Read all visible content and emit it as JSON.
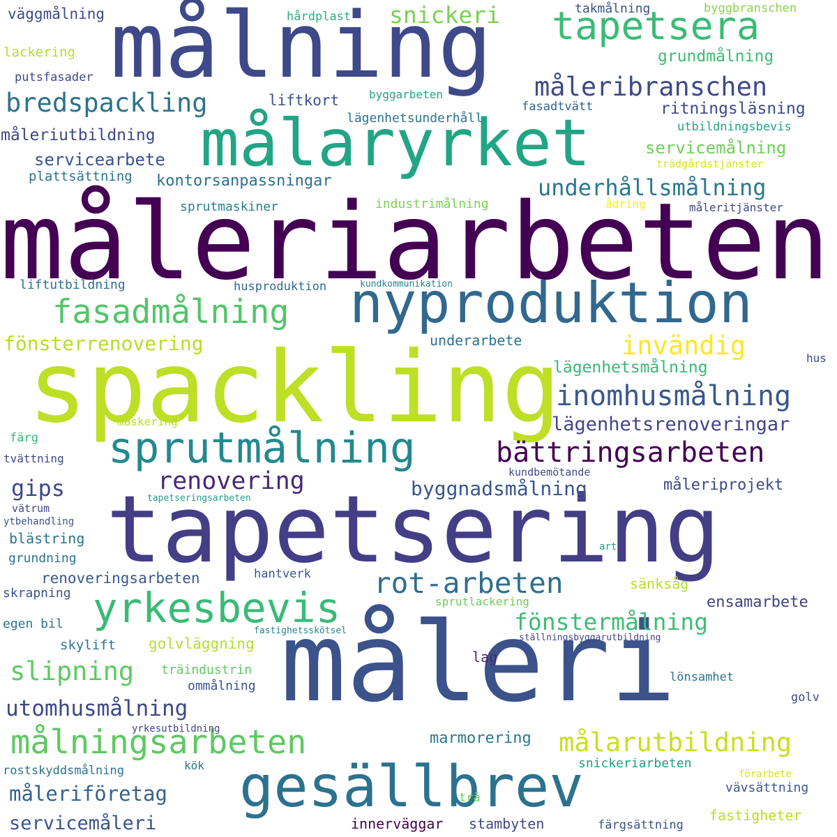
{
  "words": [
    {
      "text": "måleriarbeten",
      "color": "#440154"
    },
    {
      "text": "målning",
      "color": "#3e4989"
    },
    {
      "text": "spackling",
      "color": "#bddf26"
    },
    {
      "text": "tapetsering",
      "color": "#433e85"
    },
    {
      "text": "måleri",
      "color": "#3b528b"
    },
    {
      "text": "målaryrket",
      "color": "#21a585"
    },
    {
      "text": "nyproduktion",
      "color": "#31688e"
    },
    {
      "text": "gesällbrev",
      "color": "#2c728e"
    },
    {
      "text": "tapetsera",
      "color": "#3bbb75"
    },
    {
      "text": "sprutmålning",
      "color": "#23898e"
    },
    {
      "text": "yrkesbevis",
      "color": "#3aba76"
    },
    {
      "text": "fasadmålning",
      "color": "#52c569"
    },
    {
      "text": "målningsarbeten",
      "color": "#5ec962"
    },
    {
      "text": "rot-arbeten",
      "color": "#2e6e8e"
    },
    {
      "text": "bättringsarbeten",
      "color": "#440154"
    },
    {
      "text": "inomhusmålning",
      "color": "#38588c"
    },
    {
      "text": "målarutbildning",
      "color": "#c8e020"
    },
    {
      "text": "bredspackling",
      "color": "#2c728e"
    },
    {
      "text": "måleribranschen",
      "color": "#3e4a89"
    },
    {
      "text": "invändig",
      "color": "#fde725"
    },
    {
      "text": "slipning",
      "color": "#5ec962"
    },
    {
      "text": "renovering",
      "color": "#482878"
    },
    {
      "text": "fönstermålning",
      "color": "#3fbc73"
    },
    {
      "text": "underhållsmålning",
      "color": "#2a788e"
    },
    {
      "text": "snickeri",
      "color": "#7ad151"
    },
    {
      "text": "utomhusmålning",
      "color": "#3f4788"
    },
    {
      "text": "måleriföretag",
      "color": "#33638d"
    },
    {
      "text": "lägenhetsrenoveringar",
      "color": "#414487"
    },
    {
      "text": "byggnadsmålning",
      "color": "#39568c"
    },
    {
      "text": "fönsterrenovering",
      "color": "#b5de2b"
    },
    {
      "text": "servicemåleri",
      "color": "#3b528b"
    },
    {
      "text": "gips",
      "color": "#3f4788"
    },
    {
      "text": "servicemålning",
      "color": "#6ece58"
    },
    {
      "text": "ritningsläsning",
      "color": "#3e4989"
    },
    {
      "text": "servicearbete",
      "color": "#3b528b"
    },
    {
      "text": "kontorsanpassningar",
      "color": "#2d708e"
    },
    {
      "text": "måleriutbildning",
      "color": "#3f4788"
    },
    {
      "text": "grundmålning",
      "color": "#3fbc73"
    },
    {
      "text": "lägenhetsmålning",
      "color": "#37b878"
    },
    {
      "text": "marmorering",
      "color": "#2a788e"
    },
    {
      "text": "ensamarbete",
      "color": "#414487"
    },
    {
      "text": "måleriprojekt",
      "color": "#3e4989"
    },
    {
      "text": "renoveringsarbeten",
      "color": "#38598c"
    },
    {
      "text": "underarbete",
      "color": "#2c728e"
    },
    {
      "text": "liftkort",
      "color": "#3b528b"
    },
    {
      "text": "plattsättning",
      "color": "#2c728e"
    },
    {
      "text": "sprutmaskiner",
      "color": "#26818e"
    },
    {
      "text": "industrimålning",
      "color": "#7ad151"
    },
    {
      "text": "golvläggning",
      "color": "#b5de2b"
    },
    {
      "text": "väggmålning",
      "color": "#3e4a89"
    },
    {
      "text": "takmålning",
      "color": "#3b528b"
    },
    {
      "text": "byggbranschen",
      "color": "#86d549"
    },
    {
      "text": "lackering",
      "color": "#b5de2b"
    },
    {
      "text": "hårdplast",
      "color": "#29af7f"
    },
    {
      "text": "putsfasader",
      "color": "#3f4788"
    },
    {
      "text": "byggarbeten",
      "color": "#20a486"
    },
    {
      "text": "fasadtvätt",
      "color": "#33638d"
    },
    {
      "text": "lägenhetsunderhåll",
      "color": "#2c728e"
    },
    {
      "text": "utbildningsbevis",
      "color": "#20a486"
    },
    {
      "text": "trädgårdstjänster",
      "color": "#d8e219"
    },
    {
      "text": "ådring",
      "color": "#fde725"
    },
    {
      "text": "måleritjänster",
      "color": "#3e4989"
    },
    {
      "text": "liftutbildning",
      "color": "#2d708e"
    },
    {
      "text": "husproduktion",
      "color": "#31688e"
    },
    {
      "text": "kundkommunikation",
      "color": "#25838e"
    },
    {
      "text": "hus",
      "color": "#3f4788"
    },
    {
      "text": "maskering",
      "color": "#b5de2b"
    },
    {
      "text": "färg",
      "color": "#37b878"
    },
    {
      "text": "tvättning",
      "color": "#3f4788"
    },
    {
      "text": "kundbemötande",
      "color": "#3e4989"
    },
    {
      "text": "vätrum",
      "color": "#414487"
    },
    {
      "text": "tapetseringsarbeten",
      "color": "#1f9e89"
    },
    {
      "text": "ytbehandling",
      "color": "#3b528b"
    },
    {
      "text": "blästring",
      "color": "#2c728e"
    },
    {
      "text": "grundning",
      "color": "#2c728e"
    },
    {
      "text": "art",
      "color": "#1f9e89"
    },
    {
      "text": "hantverk",
      "color": "#3b528b"
    },
    {
      "text": "sänksåg",
      "color": "#b5de2b"
    },
    {
      "text": "skrapning",
      "color": "#3b528b"
    },
    {
      "text": "sprutlackering",
      "color": "#6ece58"
    },
    {
      "text": "egen bil",
      "color": "#2c728e"
    },
    {
      "text": "fastighetsskötsel",
      "color": "#25838e"
    },
    {
      "text": "ställningsbyggarutbildning",
      "color": "#414487"
    },
    {
      "text": "skylift",
      "color": "#2c728e"
    },
    {
      "text": "lag",
      "color": "#482878"
    },
    {
      "text": "träindustrin",
      "color": "#5ec962"
    },
    {
      "text": "lönsamhet",
      "color": "#2c728e"
    },
    {
      "text": "ommålning",
      "color": "#3b528b"
    },
    {
      "text": "golv",
      "color": "#3f4788"
    },
    {
      "text": "yrkesutbildning",
      "color": "#414487"
    },
    {
      "text": "rostskyddsmålning",
      "color": "#2c728e"
    },
    {
      "text": "kök",
      "color": "#2c728e"
    },
    {
      "text": "snickeriarbeten",
      "color": "#1f9e89"
    },
    {
      "text": "förarbete",
      "color": "#d8e219"
    },
    {
      "text": "vävsättning",
      "color": "#39568c"
    },
    {
      "text": "trä",
      "color": "#6ece58"
    },
    {
      "text": "fastigheter",
      "color": "#b5de2b"
    },
    {
      "text": "innerväggar",
      "color": "#440154"
    },
    {
      "text": "stambyten",
      "color": "#3e4989"
    },
    {
      "text": "färgsättning",
      "color": "#3b528b"
    }
  ]
}
